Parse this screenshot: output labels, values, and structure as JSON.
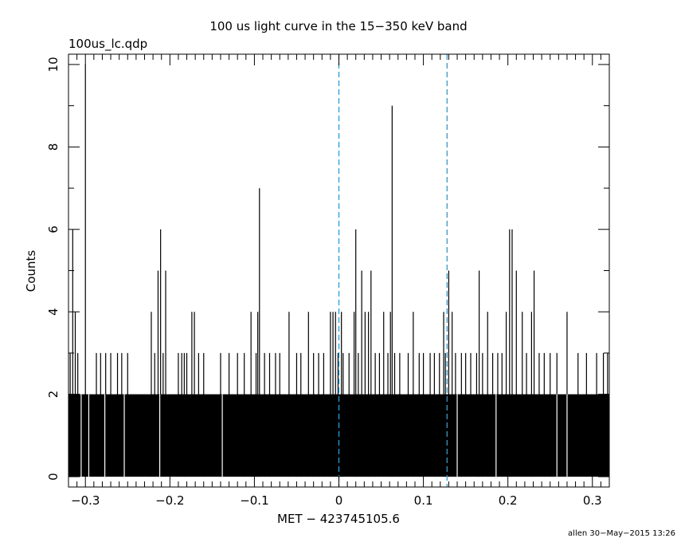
{
  "chart_data": {
    "type": "bar",
    "title": "100 us light curve in the 15−350 keV band",
    "subtitle": "100us_lc.qdp",
    "xlabel": "MET − 423745105.6",
    "ylabel": "Counts",
    "footer": "allen 30−May−2015 13:26",
    "xlim": [
      -0.32,
      0.32
    ],
    "ylim": [
      -0.25,
      10.25
    ],
    "bin_width": 0.0001,
    "x_ticks": [
      -0.3,
      -0.2,
      -0.1,
      0,
      0.1,
      0.2,
      0.3
    ],
    "x_tick_labels": [
      "−0.3",
      "−0.2",
      "−0.1",
      "0",
      "0.1",
      "0.2",
      "0.3"
    ],
    "y_ticks": [
      0,
      2,
      4,
      6,
      8,
      10
    ],
    "y_tick_labels": [
      "0",
      "2",
      "4",
      "6",
      "8",
      "10"
    ],
    "vlines": [
      0,
      0.128
    ],
    "vline_color": "#3399cc",
    "bar_color": "#000000",
    "spikes": [
      {
        "x": -0.318,
        "y": 3
      },
      {
        "x": -0.315,
        "y": 6
      },
      {
        "x": -0.312,
        "y": 4
      },
      {
        "x": -0.309,
        "y": 3
      },
      {
        "x": -0.3,
        "y": 10
      },
      {
        "x": -0.287,
        "y": 3
      },
      {
        "x": -0.282,
        "y": 3
      },
      {
        "x": -0.276,
        "y": 3
      },
      {
        "x": -0.27,
        "y": 3
      },
      {
        "x": -0.262,
        "y": 3
      },
      {
        "x": -0.257,
        "y": 3
      },
      {
        "x": -0.25,
        "y": 3
      },
      {
        "x": -0.222,
        "y": 4
      },
      {
        "x": -0.218,
        "y": 3
      },
      {
        "x": -0.214,
        "y": 5
      },
      {
        "x": -0.211,
        "y": 6
      },
      {
        "x": -0.208,
        "y": 3
      },
      {
        "x": -0.205,
        "y": 5
      },
      {
        "x": -0.19,
        "y": 3
      },
      {
        "x": -0.186,
        "y": 3
      },
      {
        "x": -0.183,
        "y": 3
      },
      {
        "x": -0.18,
        "y": 3
      },
      {
        "x": -0.174,
        "y": 4
      },
      {
        "x": -0.171,
        "y": 4
      },
      {
        "x": -0.166,
        "y": 3
      },
      {
        "x": -0.16,
        "y": 3
      },
      {
        "x": -0.14,
        "y": 3
      },
      {
        "x": -0.13,
        "y": 3
      },
      {
        "x": -0.12,
        "y": 3
      },
      {
        "x": -0.112,
        "y": 3
      },
      {
        "x": -0.104,
        "y": 4
      },
      {
        "x": -0.098,
        "y": 3
      },
      {
        "x": -0.096,
        "y": 4
      },
      {
        "x": -0.094,
        "y": 7
      },
      {
        "x": -0.088,
        "y": 3
      },
      {
        "x": -0.082,
        "y": 3
      },
      {
        "x": -0.075,
        "y": 3
      },
      {
        "x": -0.07,
        "y": 3
      },
      {
        "x": -0.059,
        "y": 4
      },
      {
        "x": -0.05,
        "y": 3
      },
      {
        "x": -0.045,
        "y": 3
      },
      {
        "x": -0.036,
        "y": 4
      },
      {
        "x": -0.03,
        "y": 3
      },
      {
        "x": -0.024,
        "y": 3
      },
      {
        "x": -0.018,
        "y": 3
      },
      {
        "x": -0.01,
        "y": 4
      },
      {
        "x": -0.007,
        "y": 4
      },
      {
        "x": -0.004,
        "y": 4
      },
      {
        "x": -0.001,
        "y": 3
      },
      {
        "x": 0.003,
        "y": 4
      },
      {
        "x": 0.005,
        "y": 3
      },
      {
        "x": 0.012,
        "y": 3
      },
      {
        "x": 0.018,
        "y": 4
      },
      {
        "x": 0.02,
        "y": 6
      },
      {
        "x": 0.023,
        "y": 3
      },
      {
        "x": 0.027,
        "y": 5
      },
      {
        "x": 0.031,
        "y": 4
      },
      {
        "x": 0.035,
        "y": 4
      },
      {
        "x": 0.038,
        "y": 5
      },
      {
        "x": 0.043,
        "y": 3
      },
      {
        "x": 0.048,
        "y": 3
      },
      {
        "x": 0.053,
        "y": 4
      },
      {
        "x": 0.058,
        "y": 3
      },
      {
        "x": 0.061,
        "y": 4
      },
      {
        "x": 0.063,
        "y": 9
      },
      {
        "x": 0.066,
        "y": 3
      },
      {
        "x": 0.072,
        "y": 3
      },
      {
        "x": 0.082,
        "y": 3
      },
      {
        "x": 0.088,
        "y": 4
      },
      {
        "x": 0.095,
        "y": 3
      },
      {
        "x": 0.1,
        "y": 3
      },
      {
        "x": 0.108,
        "y": 3
      },
      {
        "x": 0.113,
        "y": 3
      },
      {
        "x": 0.119,
        "y": 3
      },
      {
        "x": 0.124,
        "y": 4
      },
      {
        "x": 0.126,
        "y": 3
      },
      {
        "x": 0.13,
        "y": 5
      },
      {
        "x": 0.134,
        "y": 4
      },
      {
        "x": 0.138,
        "y": 3
      },
      {
        "x": 0.145,
        "y": 3
      },
      {
        "x": 0.15,
        "y": 3
      },
      {
        "x": 0.156,
        "y": 3
      },
      {
        "x": 0.163,
        "y": 3
      },
      {
        "x": 0.166,
        "y": 5
      },
      {
        "x": 0.17,
        "y": 3
      },
      {
        "x": 0.176,
        "y": 4
      },
      {
        "x": 0.182,
        "y": 3
      },
      {
        "x": 0.188,
        "y": 3
      },
      {
        "x": 0.193,
        "y": 3
      },
      {
        "x": 0.198,
        "y": 4
      },
      {
        "x": 0.202,
        "y": 6
      },
      {
        "x": 0.205,
        "y": 6
      },
      {
        "x": 0.21,
        "y": 5
      },
      {
        "x": 0.217,
        "y": 4
      },
      {
        "x": 0.222,
        "y": 3
      },
      {
        "x": 0.228,
        "y": 4
      },
      {
        "x": 0.231,
        "y": 5
      },
      {
        "x": 0.237,
        "y": 3
      },
      {
        "x": 0.243,
        "y": 3
      },
      {
        "x": 0.25,
        "y": 3
      },
      {
        "x": 0.258,
        "y": 3
      },
      {
        "x": 0.27,
        "y": 4
      },
      {
        "x": 0.283,
        "y": 3
      },
      {
        "x": 0.293,
        "y": 3
      },
      {
        "x": 0.305,
        "y": 3
      },
      {
        "x": 0.313,
        "y": 3
      },
      {
        "x": 0.318,
        "y": 3
      }
    ],
    "gaps": [
      -0.305,
      -0.296,
      -0.277,
      -0.254,
      -0.212,
      -0.138,
      0.14,
      0.186,
      0.258,
      0.27
    ]
  }
}
